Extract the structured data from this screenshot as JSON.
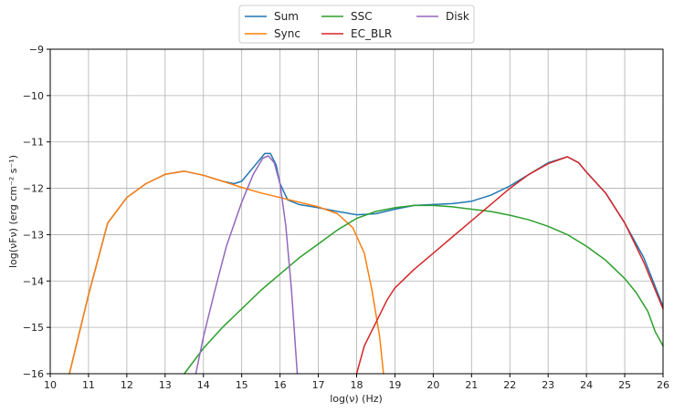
{
  "chart_data": {
    "type": "line",
    "title": "",
    "xlabel": "log(ν)  (Hz)",
    "ylabel": "log(νFν)  (erg cm⁻²  s⁻¹)",
    "xlim": [
      10,
      26
    ],
    "ylim": [
      -16,
      -9
    ],
    "x_ticks": [
      "10",
      "11",
      "12",
      "13",
      "14",
      "15",
      "16",
      "17",
      "18",
      "19",
      "20",
      "21",
      "22",
      "23",
      "24",
      "25",
      "26"
    ],
    "y_ticks": [
      "−9",
      "−10",
      "−11",
      "−12",
      "−13",
      "−14",
      "−15",
      "−16"
    ],
    "grid": true,
    "legend": {
      "placement": "top-center-outside",
      "columns": 3
    },
    "series": [
      {
        "name": "Sum",
        "color": "#1f77b4",
        "points": [
          [
            10.5,
            -16.0
          ],
          [
            11.0,
            -14.3
          ],
          [
            11.5,
            -12.75
          ],
          [
            12.0,
            -12.2
          ],
          [
            12.5,
            -11.9
          ],
          [
            13.0,
            -11.7
          ],
          [
            13.5,
            -11.63
          ],
          [
            14.0,
            -11.72
          ],
          [
            14.5,
            -11.85
          ],
          [
            14.8,
            -11.9
          ],
          [
            15.0,
            -11.85
          ],
          [
            15.3,
            -11.55
          ],
          [
            15.6,
            -11.25
          ],
          [
            15.75,
            -11.25
          ],
          [
            15.9,
            -11.5
          ],
          [
            16.0,
            -11.9
          ],
          [
            16.2,
            -12.25
          ],
          [
            16.5,
            -12.35
          ],
          [
            17.0,
            -12.42
          ],
          [
            17.5,
            -12.5
          ],
          [
            18.0,
            -12.57
          ],
          [
            18.5,
            -12.55
          ],
          [
            19.0,
            -12.45
          ],
          [
            19.5,
            -12.37
          ],
          [
            20.0,
            -12.35
          ],
          [
            20.5,
            -12.33
          ],
          [
            21.0,
            -12.28
          ],
          [
            21.5,
            -12.15
          ],
          [
            22.0,
            -11.95
          ],
          [
            22.5,
            -11.7
          ],
          [
            23.0,
            -11.45
          ],
          [
            23.5,
            -11.32
          ],
          [
            23.8,
            -11.45
          ],
          [
            24.0,
            -11.65
          ],
          [
            24.5,
            -12.1
          ],
          [
            25.0,
            -12.75
          ],
          [
            25.5,
            -13.5
          ],
          [
            26.0,
            -14.55
          ]
        ]
      },
      {
        "name": "Sync",
        "color": "#ff7f0e",
        "points": [
          [
            10.5,
            -16.0
          ],
          [
            11.0,
            -14.3
          ],
          [
            11.5,
            -12.75
          ],
          [
            12.0,
            -12.2
          ],
          [
            12.5,
            -11.9
          ],
          [
            13.0,
            -11.7
          ],
          [
            13.5,
            -11.63
          ],
          [
            14.0,
            -11.72
          ],
          [
            14.5,
            -11.85
          ],
          [
            15.0,
            -11.98
          ],
          [
            15.5,
            -12.1
          ],
          [
            16.0,
            -12.2
          ],
          [
            16.5,
            -12.3
          ],
          [
            17.0,
            -12.4
          ],
          [
            17.5,
            -12.55
          ],
          [
            17.9,
            -12.85
          ],
          [
            18.2,
            -13.4
          ],
          [
            18.4,
            -14.2
          ],
          [
            18.6,
            -15.2
          ],
          [
            18.7,
            -16.0
          ]
        ]
      },
      {
        "name": "SSC",
        "color": "#2ca02c",
        "points": [
          [
            13.5,
            -16.0
          ],
          [
            14.0,
            -15.45
          ],
          [
            14.5,
            -15.0
          ],
          [
            15.0,
            -14.6
          ],
          [
            15.5,
            -14.2
          ],
          [
            16.0,
            -13.85
          ],
          [
            16.5,
            -13.5
          ],
          [
            17.0,
            -13.2
          ],
          [
            17.5,
            -12.9
          ],
          [
            18.0,
            -12.65
          ],
          [
            18.5,
            -12.5
          ],
          [
            19.0,
            -12.42
          ],
          [
            19.5,
            -12.37
          ],
          [
            20.0,
            -12.37
          ],
          [
            20.5,
            -12.4
          ],
          [
            21.0,
            -12.45
          ],
          [
            21.5,
            -12.5
          ],
          [
            22.0,
            -12.58
          ],
          [
            22.5,
            -12.68
          ],
          [
            23.0,
            -12.82
          ],
          [
            23.5,
            -13.0
          ],
          [
            24.0,
            -13.25
          ],
          [
            24.5,
            -13.55
          ],
          [
            25.0,
            -13.95
          ],
          [
            25.3,
            -14.25
          ],
          [
            25.6,
            -14.65
          ],
          [
            25.8,
            -15.1
          ],
          [
            26.0,
            -15.4
          ]
        ]
      },
      {
        "name": "EC_BLR",
        "color": "#d62728",
        "points": [
          [
            18.0,
            -16.0
          ],
          [
            18.2,
            -15.4
          ],
          [
            18.5,
            -14.9
          ],
          [
            18.8,
            -14.4
          ],
          [
            19.0,
            -14.15
          ],
          [
            19.5,
            -13.75
          ],
          [
            20.0,
            -13.4
          ],
          [
            20.5,
            -13.05
          ],
          [
            21.0,
            -12.7
          ],
          [
            21.5,
            -12.35
          ],
          [
            22.0,
            -12.0
          ],
          [
            22.5,
            -11.7
          ],
          [
            23.0,
            -11.47
          ],
          [
            23.5,
            -11.32
          ],
          [
            23.8,
            -11.45
          ],
          [
            24.0,
            -11.65
          ],
          [
            24.5,
            -12.1
          ],
          [
            25.0,
            -12.75
          ],
          [
            25.5,
            -13.6
          ],
          [
            26.0,
            -14.6
          ]
        ]
      },
      {
        "name": "Disk",
        "color": "#9467bd",
        "points": [
          [
            13.8,
            -16.0
          ],
          [
            14.0,
            -15.2
          ],
          [
            14.3,
            -14.2
          ],
          [
            14.6,
            -13.25
          ],
          [
            15.0,
            -12.3
          ],
          [
            15.3,
            -11.7
          ],
          [
            15.55,
            -11.35
          ],
          [
            15.7,
            -11.3
          ],
          [
            15.85,
            -11.45
          ],
          [
            16.0,
            -11.9
          ],
          [
            16.15,
            -12.8
          ],
          [
            16.3,
            -14.2
          ],
          [
            16.45,
            -16.0
          ]
        ]
      }
    ]
  }
}
